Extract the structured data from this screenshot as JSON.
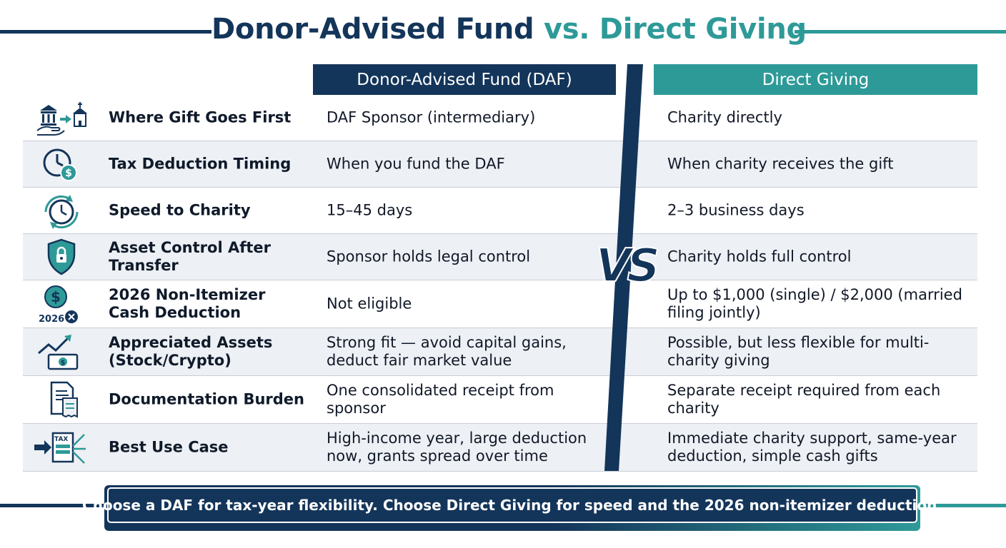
{
  "title": {
    "part1": "Donor-Advised Fund",
    "part2": "vs. Direct Giving"
  },
  "columns": {
    "daf": "Donor-Advised Fund (DAF)",
    "direct": "Direct Giving"
  },
  "vs_label": "VS",
  "colors": {
    "navy": "#14355a",
    "teal": "#2e9a98",
    "row_alt": "#edf0f4"
  },
  "rows": [
    {
      "icon": "bank-to-charity-icon",
      "label": "Where Gift Goes First",
      "daf": "DAF Sponsor (intermediary)",
      "direct": "Charity directly"
    },
    {
      "icon": "clock-dollar-icon",
      "label": "Tax Deduction Timing",
      "daf": "When you fund the DAF",
      "direct": "When charity receives the gift"
    },
    {
      "icon": "stopwatch-refresh-icon",
      "label": "Speed to Charity",
      "daf": "15–45 days",
      "direct": "2–3 business days"
    },
    {
      "icon": "shield-lock-icon",
      "label": "Asset Control After Transfer",
      "daf": "Sponsor holds legal control",
      "direct": "Charity holds full control"
    },
    {
      "icon": "dollar-2026-icon",
      "label": "2026 Non-Itemizer Cash Deduction",
      "daf": "Not eligible",
      "direct": "Up to $1,000 (single) / $2,000 (married filing jointly)",
      "icon_text": "2026"
    },
    {
      "icon": "chart-up-cash-icon",
      "label": "Appreciated Assets (Stock/Crypto)",
      "daf": "Strong fit — avoid capital gains, deduct fair market value",
      "direct": "Possible, but less flexible for multi-charity giving"
    },
    {
      "icon": "documents-icon",
      "label": "Documentation Burden",
      "daf": "One consolidated receipt from sponsor",
      "direct": "Separate receipt required from each charity"
    },
    {
      "icon": "tax-form-arrows-icon",
      "label": "Best Use Case",
      "daf": "High-income year, large deduction now, grants spread over time",
      "direct": "Immediate charity support, same-year deduction, simple cash gifts",
      "icon_text": "TAX"
    }
  ],
  "banner": "Choose a DAF for tax-year flexibility. Choose Direct Giving for speed and the 2026 non-itemizer deduction."
}
